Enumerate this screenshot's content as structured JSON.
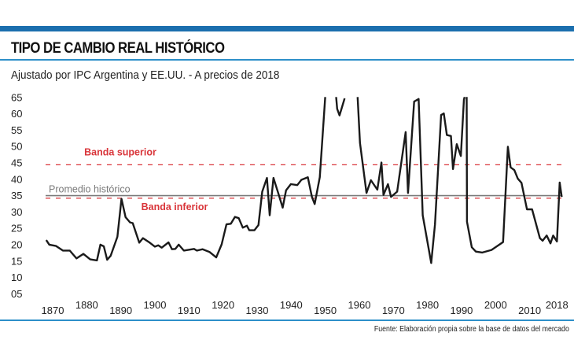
{
  "header": {
    "title": "TIPO DE CAMBIO REAL HISTÓRICO",
    "subtitle": "Ajustado por IPC Argentina y EE.UU. - A precios de 2018",
    "accent_color": "#1b6fae"
  },
  "footer": {
    "source": "Fuente: Elaboración propia sobre la base de datos del mercado"
  },
  "chart_data": {
    "type": "line",
    "title": "TIPO DE CAMBIO REAL HISTÓRICO",
    "subtitle": "Ajustado por IPC Argentina y EE.UU. - A precios de 2018",
    "xlabel": "",
    "ylabel": "",
    "ylim": [
      5,
      65
    ],
    "xlim": [
      1868,
      2019.5
    ],
    "grid": false,
    "legend": "none",
    "y_ticks": [
      "05",
      "10",
      "15",
      "20",
      "25",
      "30",
      "35",
      "40",
      "45",
      "50",
      "55",
      "60",
      "65"
    ],
    "x_ticks": [
      "1870",
      "1880",
      "1890",
      "1900",
      "1910",
      "1920",
      "1930",
      "1940",
      "1950",
      "1960",
      "1970",
      "1980",
      "1990",
      "2000",
      "2010",
      "2018"
    ],
    "x_tick_values": [
      1870,
      1880,
      1890,
      1900,
      1910,
      1920,
      1930,
      1940,
      1950,
      1960,
      1970,
      1980,
      1990,
      2000,
      2010,
      2018
    ],
    "line_color": "#1a1a1a",
    "series": [
      {
        "points": [
          [
            1868.1,
            21.3
          ],
          [
            1869,
            19.9
          ],
          [
            1871,
            19.5
          ],
          [
            1873,
            18.1
          ],
          [
            1875,
            18.1
          ],
          [
            1877,
            15.7
          ],
          [
            1879,
            17.1
          ],
          [
            1881,
            15.4
          ],
          [
            1883,
            15.1
          ],
          [
            1884,
            19.9
          ],
          [
            1885,
            19.4
          ],
          [
            1886,
            15.3
          ],
          [
            1887,
            16.5
          ],
          [
            1889,
            22.3
          ],
          [
            1890.2,
            33.9
          ],
          [
            1891.4,
            28.3
          ],
          [
            1892.7,
            26.7
          ],
          [
            1893.5,
            26.5
          ],
          [
            1895.4,
            20.5
          ],
          [
            1896.5,
            21.9
          ],
          [
            1898.5,
            20.5
          ],
          [
            1900,
            19.3
          ],
          [
            1901,
            19.7
          ],
          [
            1902,
            19.0
          ],
          [
            1904,
            20.6
          ],
          [
            1905,
            18.5
          ],
          [
            1906,
            18.6
          ],
          [
            1907,
            19.9
          ],
          [
            1908.5,
            18.1
          ],
          [
            1911.5,
            18.6
          ],
          [
            1912.3,
            18.1
          ],
          [
            1914,
            18.5
          ],
          [
            1916,
            17.7
          ],
          [
            1918,
            16.0
          ],
          [
            1919.6,
            20.0
          ],
          [
            1921,
            26.1
          ],
          [
            1922.3,
            26.3
          ],
          [
            1923.5,
            28.4
          ],
          [
            1924.6,
            28.0
          ],
          [
            1925.8,
            25.1
          ],
          [
            1927,
            25.7
          ],
          [
            1927.7,
            24.3
          ],
          [
            1929.2,
            24.3
          ],
          [
            1930.4,
            25.9
          ],
          [
            1931.5,
            36.1
          ],
          [
            1932.9,
            40.3
          ],
          [
            1933.7,
            28.9
          ],
          [
            1934.8,
            40.3
          ],
          [
            1936.2,
            35.7
          ],
          [
            1937.5,
            31.2
          ],
          [
            1938.5,
            36.5
          ],
          [
            1939.9,
            38.4
          ],
          [
            1941.8,
            38.1
          ],
          [
            1943,
            39.7
          ],
          [
            1944.9,
            40.5
          ],
          [
            1946.1,
            34.5
          ],
          [
            1946.9,
            32.3
          ],
          [
            1948.4,
            40.5
          ],
          [
            1950,
            65
          ],
          null,
          [
            1953.2,
            65
          ],
          [
            1953.5,
            61.4
          ],
          [
            1954.2,
            59.4
          ],
          [
            1955.7,
            64.6
          ],
          null,
          [
            1959.5,
            65
          ],
          [
            1960.2,
            51
          ],
          [
            1962.1,
            35.7
          ],
          [
            1963.4,
            39.6
          ],
          [
            1965.3,
            36.7
          ],
          [
            1966.5,
            45
          ],
          [
            1967.1,
            35.1
          ],
          [
            1968.4,
            38.4
          ],
          [
            1969.3,
            34.5
          ],
          [
            1971.1,
            36.1
          ],
          [
            1973.6,
            54.3
          ],
          [
            1974.3,
            35.7
          ],
          [
            1976.1,
            63.6
          ],
          [
            1977.4,
            64.4
          ],
          [
            1978.6,
            28.9
          ],
          [
            1981.1,
            14.3
          ],
          [
            1982.2,
            26.1
          ],
          [
            1984,
            59.5
          ],
          [
            1984.8,
            60
          ],
          [
            1985.7,
            53.4
          ],
          [
            1986.9,
            53.1
          ],
          [
            1987.5,
            43
          ],
          [
            1988.6,
            50.6
          ],
          [
            1989.8,
            47
          ],
          [
            1990.7,
            64.2
          ],
          [
            1990.9,
            65
          ],
          null,
          [
            1991.5,
            65
          ],
          [
            1991.6,
            26.9
          ],
          [
            1993,
            19.1
          ],
          [
            1994.2,
            17.8
          ],
          [
            1996.1,
            17.5
          ],
          [
            1998.8,
            18.3
          ],
          [
            2002.2,
            20.7
          ],
          [
            2003.6,
            49.8
          ],
          [
            2004.4,
            43.5
          ],
          [
            2005.5,
            42.7
          ],
          [
            2006.5,
            40.1
          ],
          [
            2007.6,
            38.8
          ],
          [
            2009.2,
            30.7
          ],
          [
            2010.7,
            30.7
          ],
          [
            2013,
            21.9
          ],
          [
            2013.8,
            21.1
          ],
          [
            2015,
            22.7
          ],
          [
            2016.1,
            20.3
          ],
          [
            2016.9,
            22.7
          ],
          [
            2018,
            20.9
          ],
          [
            2018.8,
            38.9
          ],
          [
            2019.4,
            34.5
          ]
        ]
      }
    ],
    "reference_lines": [
      {
        "label": "Banda superior",
        "value": 44.3,
        "style": "dashed",
        "color": "#d9353a"
      },
      {
        "label": "Promedio histórico",
        "value": 34.9,
        "style": "solid",
        "color": "#7a7a7a"
      },
      {
        "label": "Banda inferior",
        "value": 34.1,
        "style": "dashed",
        "color": "#d9353a"
      }
    ]
  }
}
